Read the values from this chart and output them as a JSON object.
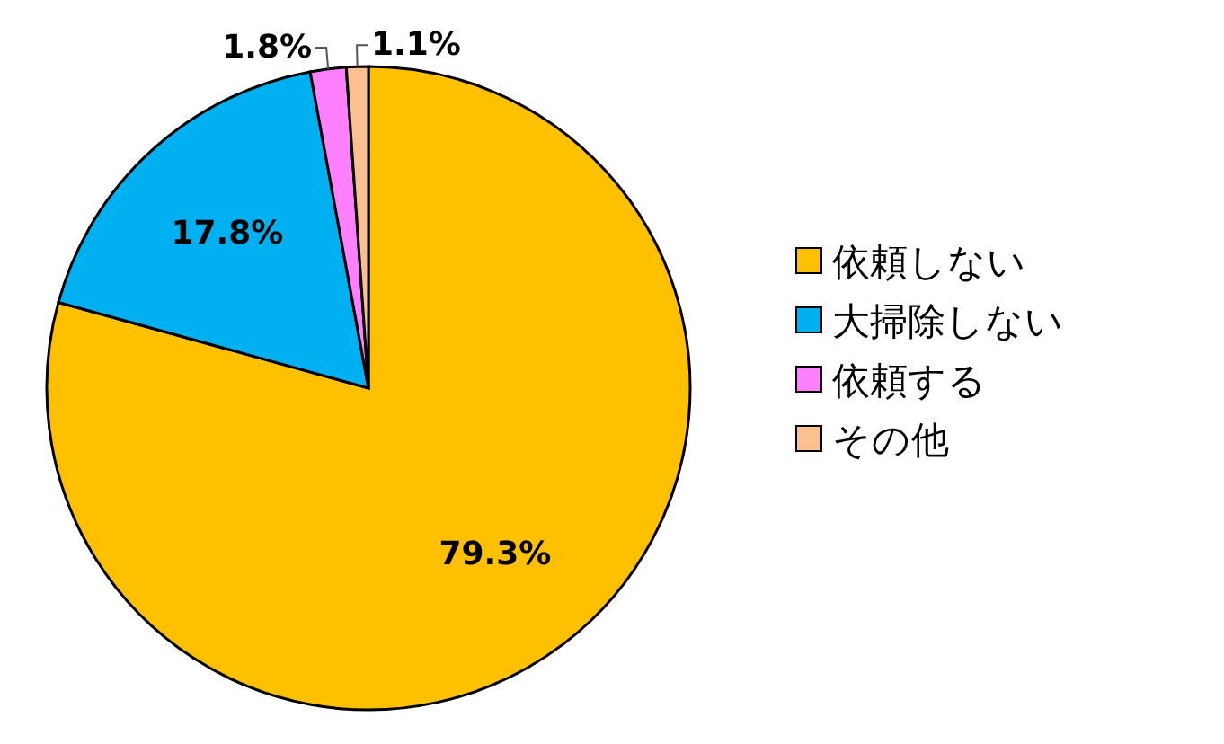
{
  "chart_data": {
    "type": "pie",
    "categories": [
      "依頼しない",
      "大掃除しない",
      "依頼する",
      "その他"
    ],
    "values": [
      79.3,
      17.8,
      1.8,
      1.1
    ],
    "colors": [
      "#ffc000",
      "#00b0f0",
      "#ff80ff",
      "#fac090"
    ],
    "value_labels": [
      "79.3%",
      "17.8%",
      "1.8%",
      "1.1%"
    ],
    "legend": "right"
  }
}
